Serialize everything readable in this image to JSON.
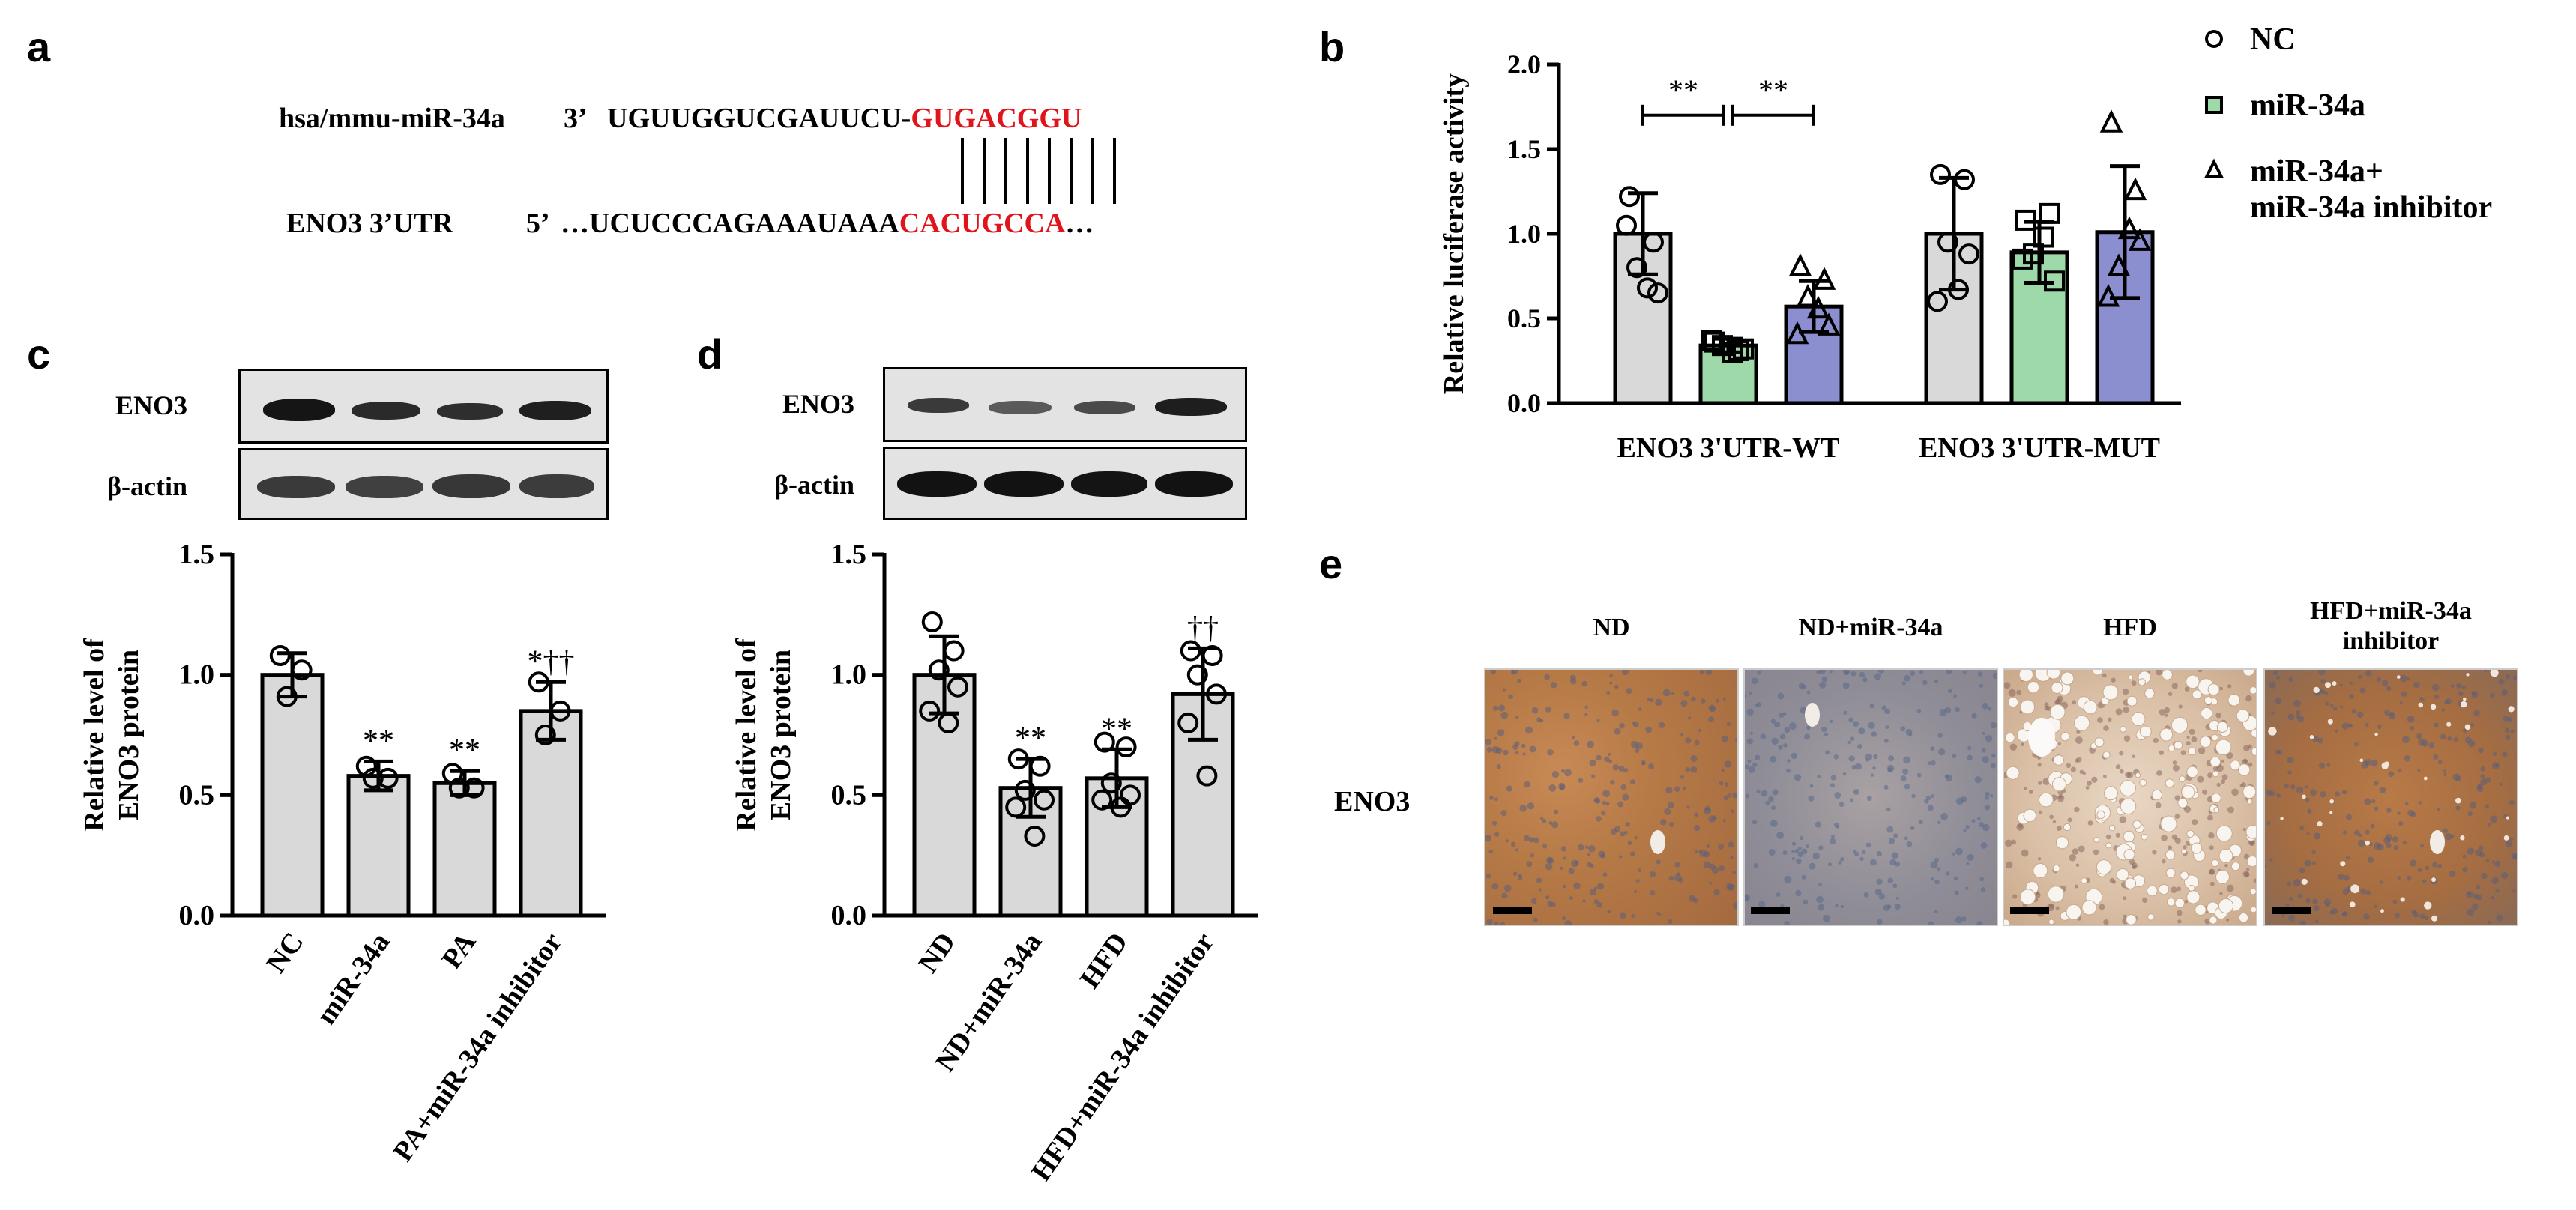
{
  "panels": {
    "a": {
      "label": "a",
      "mirna_name": "hsa/mmu-miR-34a",
      "mirna_prime": "3’",
      "mirna_seq_black": "UGUUGGUCGAUUCU-",
      "mirna_seq_red": "GUGACGGU",
      "target_name": "ENO3 3’UTR",
      "target_prime": "5’",
      "target_seq_black": "…UCUCCCAGAAAUAAA",
      "target_seq_red": "CACUGCCA",
      "target_seq_end": "…"
    },
    "b": {
      "label": "b"
    },
    "c": {
      "label": "c",
      "blot_labels": [
        "ENO3",
        "β-actin"
      ]
    },
    "d": {
      "label": "d",
      "blot_labels": [
        "ENO3",
        "β-actin"
      ]
    },
    "e": {
      "label": "e",
      "row_label": "ENO3",
      "titles": [
        "ND",
        "ND+miR-34a",
        "HFD",
        "HFD+miR-34a\ninhibitor"
      ]
    }
  },
  "colors": {
    "grey": "#d9d9d9",
    "green": "#9ed9a9",
    "blue": "#8c8fcf",
    "red": "#e0141a"
  },
  "chart_data": [
    {
      "panel": "b",
      "type": "bar",
      "categories": [
        "ENO3 3'UTR-WT",
        "ENO3 3'UTR-MUT"
      ],
      "ylabel": "Relative luciferase activity",
      "ylim": [
        0,
        2.0
      ],
      "yticks": [
        "0.0",
        "0.5",
        "1.0",
        "1.5",
        "2.0"
      ],
      "legend_position": "right",
      "series": [
        {
          "name": "NC",
          "marker": "circle",
          "color": "#d9d9d9",
          "values": [
            1.0,
            1.0
          ],
          "errors": [
            0.24,
            0.33
          ],
          "points": [
            [
              1.22,
              0.95,
              0.8,
              0.65,
              1.05,
              0.68
            ],
            [
              1.35,
              1.32,
              0.95,
              0.88,
              0.6,
              0.67
            ]
          ]
        },
        {
          "name": "miR-34a",
          "marker": "square",
          "color": "#9ed9a9",
          "values": [
            0.34,
            0.89
          ],
          "errors": [
            0.04,
            0.18
          ],
          "points": [
            [
              0.36,
              0.31,
              0.34,
              0.32,
              0.37,
              0.3
            ],
            [
              1.08,
              1.12,
              0.88,
              0.72,
              0.85,
              0.98
            ]
          ]
        },
        {
          "name": "miR-34a+\nmiR-34a inhibitor",
          "marker": "triangle",
          "color": "#8c8fcf",
          "values": [
            0.57,
            1.01
          ],
          "errors": [
            0.15,
            0.39
          ],
          "points": [
            [
              0.8,
              0.72,
              0.62,
              0.45,
              0.4,
              0.55
            ],
            [
              1.65,
              1.25,
              0.8,
              0.95,
              0.62,
              1.02
            ]
          ]
        }
      ],
      "annotations": [
        {
          "text": "**",
          "between": [
            "NC",
            "miR-34a"
          ],
          "category": "ENO3 3'UTR-WT"
        },
        {
          "text": "**",
          "between": [
            "miR-34a",
            "miR-34a+\nmiR-34a inhibitor"
          ],
          "category": "ENO3 3'UTR-WT"
        }
      ]
    },
    {
      "panel": "c",
      "type": "bar",
      "categories": [
        "NC",
        "miR-34a",
        "PA",
        "PA+miR-34a inhibitor"
      ],
      "ylabel": "Relative level of\nENO3 protein",
      "ylim": [
        0,
        1.5
      ],
      "yticks": [
        "0.0",
        "0.5",
        "1.0",
        "1.5"
      ],
      "values": [
        1.0,
        0.58,
        0.55,
        0.85
      ],
      "errors": [
        0.09,
        0.06,
        0.05,
        0.12
      ],
      "points": [
        [
          1.08,
          1.02,
          0.91
        ],
        [
          0.62,
          0.57,
          0.57
        ],
        [
          0.59,
          0.53,
          0.53
        ],
        [
          0.97,
          0.85,
          0.75
        ]
      ],
      "significance": [
        "",
        "**",
        "**",
        "*††"
      ]
    },
    {
      "panel": "d",
      "type": "bar",
      "categories": [
        "ND",
        "ND+miR-34a",
        "HFD",
        "HFD+miR-34a inhibitor"
      ],
      "ylabel": "Relative level of\nENO3 protein",
      "ylim": [
        0,
        1.5
      ],
      "yticks": [
        "0.0",
        "0.5",
        "1.0",
        "1.5"
      ],
      "values": [
        1.0,
        0.53,
        0.57,
        0.92
      ],
      "errors": [
        0.16,
        0.12,
        0.12,
        0.19
      ],
      "points": [
        [
          1.22,
          1.1,
          1.02,
          0.95,
          0.85,
          0.8
        ],
        [
          0.65,
          0.62,
          0.52,
          0.48,
          0.45,
          0.33
        ],
        [
          0.72,
          0.7,
          0.55,
          0.5,
          0.48,
          0.45
        ],
        [
          1.1,
          1.08,
          1.0,
          0.92,
          0.8,
          0.58
        ]
      ],
      "significance": [
        "",
        "**",
        "**",
        "††"
      ]
    }
  ]
}
